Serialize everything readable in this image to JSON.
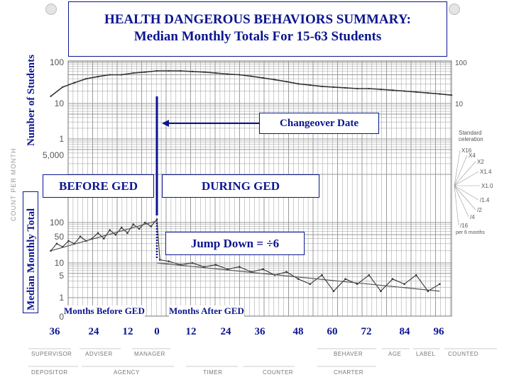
{
  "title": {
    "line1": "HEALTH DANGEROUS BEHAVIORS SUMMARY:",
    "line2": "Median Monthly Totals For 15-63 Students"
  },
  "y_labels": {
    "upper": "Number of Students",
    "lower": "Median Monthly Total",
    "printed_count": "COUNT PER MONTH"
  },
  "phases": {
    "before": "BEFORE GED",
    "during": "DURING GED"
  },
  "annotations": {
    "changeover": "Changeover Date",
    "jump": "Jump Down = ÷6"
  },
  "x_section_labels": {
    "before": "Months Before GED",
    "after": "Months After GED"
  },
  "x_ticks": [
    "36",
    "24",
    "12",
    "0",
    "12",
    "24",
    "36",
    "48",
    "60",
    "72",
    "84",
    "96"
  ],
  "printed_chart": {
    "upper_ticks": [
      "100",
      "10",
      "1"
    ],
    "lower_ticks": [
      "5,000",
      "100",
      "50",
      "10",
      "5",
      "1",
      "0"
    ],
    "right_ticks": [
      "100",
      "10"
    ],
    "celeration_title": "Standard celeration",
    "celeration_labels": [
      "X16",
      "X4",
      "X2",
      "X1.4",
      "X1.0",
      "/1.4",
      "/2",
      "/4",
      "/16"
    ],
    "celeration_note": "per 6 months",
    "footer_labels": [
      "SUPERVISOR",
      "ADVISER",
      "MANAGER",
      "DEPOSITOR",
      "AGENCY",
      "TIMER",
      "COUNTER",
      "BEHAVER",
      "AGE",
      "LABEL",
      "COUNTED",
      "CHARTER"
    ]
  },
  "colors": {
    "annotation": "#0b1590",
    "grid": "#9a9a9a",
    "data": "#333333"
  },
  "chart_data": {
    "type": "line",
    "scale": "log",
    "x_unit": "months relative to GED start",
    "xlim": [
      -36,
      100
    ],
    "phase_change_x": 0,
    "series": [
      {
        "name": "Number of Students",
        "x": [
          -36,
          -32,
          -28,
          -24,
          -20,
          -16,
          -12,
          -8,
          -4,
          0,
          4,
          8,
          12,
          16,
          20,
          24,
          28,
          32,
          36,
          40,
          44,
          48,
          52,
          56,
          60,
          64,
          68,
          72,
          76,
          80,
          84,
          88,
          92,
          96,
          100
        ],
        "y": [
          15,
          25,
          32,
          40,
          45,
          50,
          50,
          55,
          58,
          62,
          62,
          62,
          60,
          58,
          55,
          52,
          50,
          46,
          42,
          38,
          34,
          30,
          28,
          26,
          25,
          24,
          23,
          23,
          22,
          21,
          20,
          19,
          18,
          17,
          16
        ]
      },
      {
        "name": "Median Monthly Total",
        "x": [
          -36,
          -34,
          -32,
          -30,
          -28,
          -26,
          -24,
          -22,
          -20,
          -18,
          -16,
          -14,
          -12,
          -10,
          -8,
          -6,
          -4,
          -2,
          0,
          1,
          4,
          8,
          12,
          16,
          20,
          24,
          28,
          32,
          36,
          40,
          44,
          48,
          52,
          56,
          60,
          64,
          68,
          72,
          76,
          80,
          84,
          88,
          92,
          96
        ],
        "y": [
          20,
          30,
          25,
          35,
          30,
          45,
          35,
          40,
          55,
          40,
          65,
          50,
          75,
          55,
          90,
          70,
          100,
          80,
          120,
          12,
          11,
          9,
          10,
          8,
          9,
          7,
          8,
          6,
          7,
          5,
          6,
          4,
          3,
          5,
          2,
          4,
          3,
          5,
          2,
          4,
          3,
          5,
          2,
          3
        ]
      }
    ],
    "trend_before": {
      "x": [
        -36,
        0
      ],
      "y": [
        20,
        110
      ]
    },
    "trend_after": {
      "x": [
        0,
        96
      ],
      "y": [
        10,
        2
      ]
    }
  }
}
